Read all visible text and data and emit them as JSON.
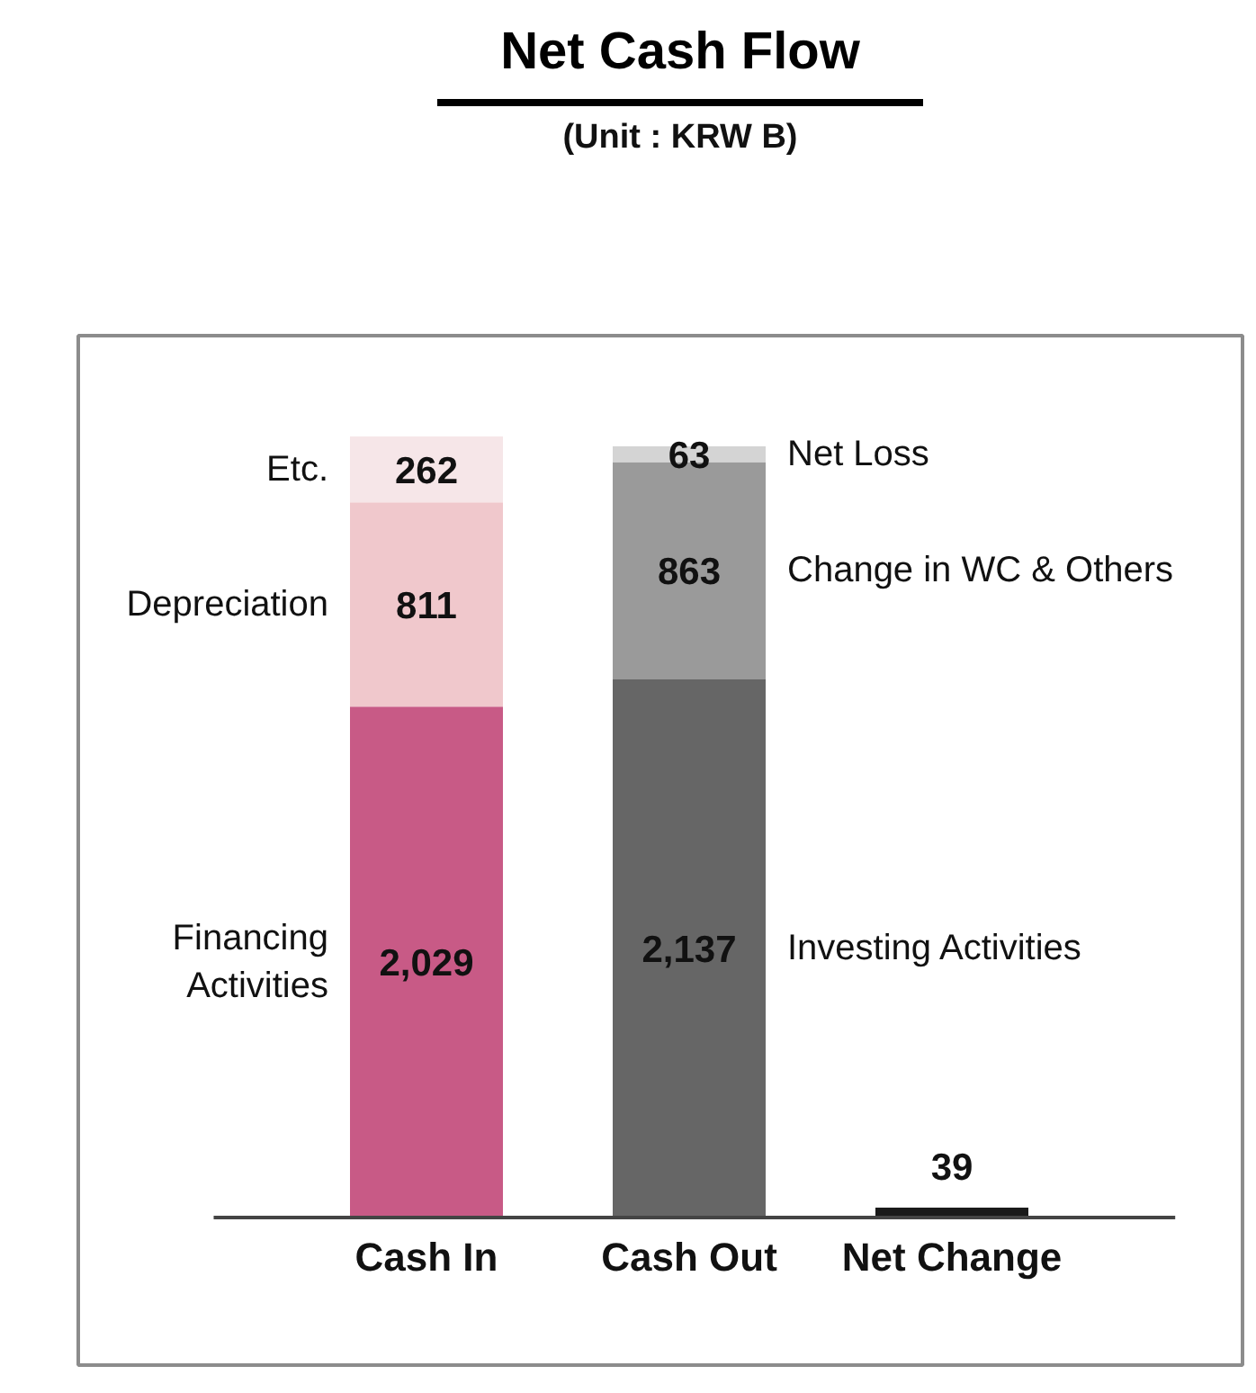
{
  "chart_data": {
    "type": "bar",
    "title": "Net Cash Flow",
    "subtitle": "(Unit : KRW B)",
    "categories": [
      "Cash In",
      "Cash Out",
      "Net Change"
    ],
    "stacked": true,
    "series": [
      {
        "name": "Financing Activities",
        "color": "#c85a86",
        "values": [
          2029,
          null,
          null
        ],
        "value_labels": [
          "2,029",
          null,
          null
        ]
      },
      {
        "name": "Depreciation",
        "color": "#f0c8cc",
        "values": [
          811,
          null,
          null
        ],
        "value_labels": [
          "811",
          null,
          null
        ]
      },
      {
        "name": "Etc.",
        "color": "#f6e6e8",
        "values": [
          262,
          null,
          null
        ],
        "value_labels": [
          "262",
          null,
          null
        ]
      },
      {
        "name": "Investing Activities",
        "color": "#666666",
        "values": [
          null,
          2137,
          null
        ],
        "value_labels": [
          null,
          "2,137",
          null
        ]
      },
      {
        "name": "Change in WC & Others",
        "color": "#9a9a9a",
        "values": [
          null,
          863,
          null
        ],
        "value_labels": [
          null,
          "863",
          null
        ]
      },
      {
        "name": "Net Loss",
        "color": "#d4d4d4",
        "values": [
          null,
          63,
          null
        ],
        "value_labels": [
          null,
          "63",
          null
        ]
      },
      {
        "color": "#1a1a1a",
        "values": [
          null,
          null,
          39
        ],
        "value_labels": [
          null,
          null,
          "39"
        ]
      }
    ]
  }
}
